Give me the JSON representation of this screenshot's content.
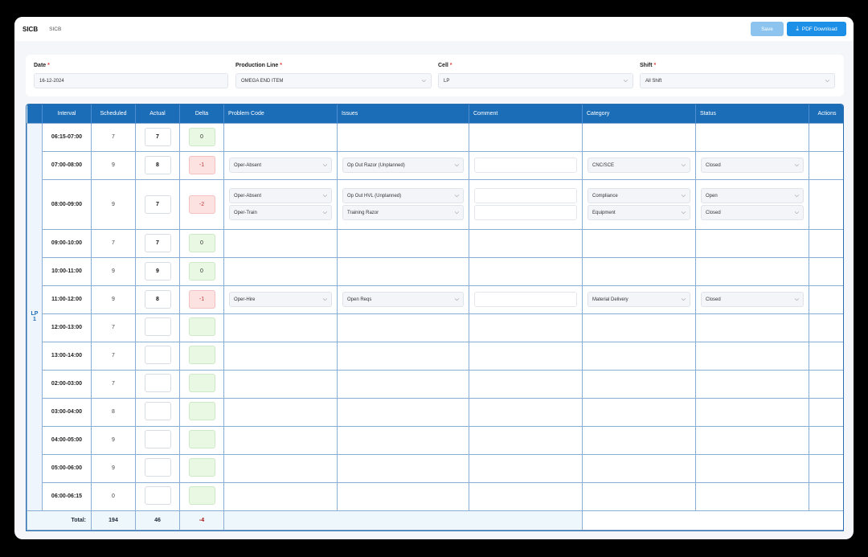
{
  "header": {
    "brand": "SICB",
    "breadcrumb": "SICB",
    "save_label": "Save",
    "pdf_label": "PDF Download"
  },
  "filters": {
    "date": {
      "label": "Date",
      "value": "16-12-2024"
    },
    "production_line": {
      "label": "Production Line",
      "value": "OMEGA END ITEM"
    },
    "cell": {
      "label": "Cell",
      "value": "LP"
    },
    "shift": {
      "label": "Shift",
      "value": "All Shift"
    }
  },
  "table": {
    "columns": [
      "Interval",
      "Scheduled",
      "Actual",
      "Delta",
      "Problem Code",
      "Issues",
      "Comment",
      "Category",
      "Status",
      "Actions"
    ],
    "group_label": [
      "LP",
      "1"
    ],
    "rows": [
      {
        "interval": "06:15-07:00",
        "scheduled": "7",
        "actual": "7",
        "delta": "0",
        "neg": false,
        "issues": []
      },
      {
        "interval": "07:00-08:00",
        "scheduled": "9",
        "actual": "8",
        "delta": "-1",
        "neg": true,
        "issues": [
          {
            "problem": "Oper-Absent",
            "issue": "Op Out Razor (Unplanned)",
            "category": "CNC/SCE",
            "status": "Closed"
          }
        ]
      },
      {
        "interval": "08:00-09:00",
        "scheduled": "9",
        "actual": "7",
        "delta": "-2",
        "neg": true,
        "issues": [
          {
            "problem": "Oper-Absent",
            "issue": "Op Out HVL (Unplanned)",
            "category": "Compliance",
            "status": "Open"
          },
          {
            "problem": "Oper-Train",
            "issue": "Training Razor",
            "category": "Equipment",
            "status": "Closed"
          }
        ]
      },
      {
        "interval": "09:00-10:00",
        "scheduled": "7",
        "actual": "7",
        "delta": "0",
        "neg": false,
        "issues": []
      },
      {
        "interval": "10:00-11:00",
        "scheduled": "9",
        "actual": "9",
        "delta": "0",
        "neg": false,
        "issues": []
      },
      {
        "interval": "11:00-12:00",
        "scheduled": "9",
        "actual": "8",
        "delta": "-1",
        "neg": true,
        "issues": [
          {
            "problem": "Oper-Hire",
            "issue": "Open Reqs",
            "category": "Material Delivery",
            "status": "Closed"
          }
        ]
      },
      {
        "interval": "12:00-13:00",
        "scheduled": "7",
        "actual": "",
        "delta": "",
        "neg": false,
        "issues": []
      },
      {
        "interval": "13:00-14:00",
        "scheduled": "7",
        "actual": "",
        "delta": "",
        "neg": false,
        "issues": []
      },
      {
        "interval": "02:00-03:00",
        "scheduled": "7",
        "actual": "",
        "delta": "",
        "neg": false,
        "issues": []
      },
      {
        "interval": "03:00-04:00",
        "scheduled": "8",
        "actual": "",
        "delta": "",
        "neg": false,
        "issues": []
      },
      {
        "interval": "04:00-05:00",
        "scheduled": "9",
        "actual": "",
        "delta": "",
        "neg": false,
        "issues": []
      },
      {
        "interval": "05:00-06:00",
        "scheduled": "9",
        "actual": "",
        "delta": "",
        "neg": false,
        "issues": []
      },
      {
        "interval": "06:00-06:15",
        "scheduled": "0",
        "actual": "",
        "delta": "",
        "neg": false,
        "issues": []
      }
    ],
    "total": {
      "label": "Total:",
      "scheduled": "194",
      "actual": "46",
      "delta": "-4"
    }
  }
}
